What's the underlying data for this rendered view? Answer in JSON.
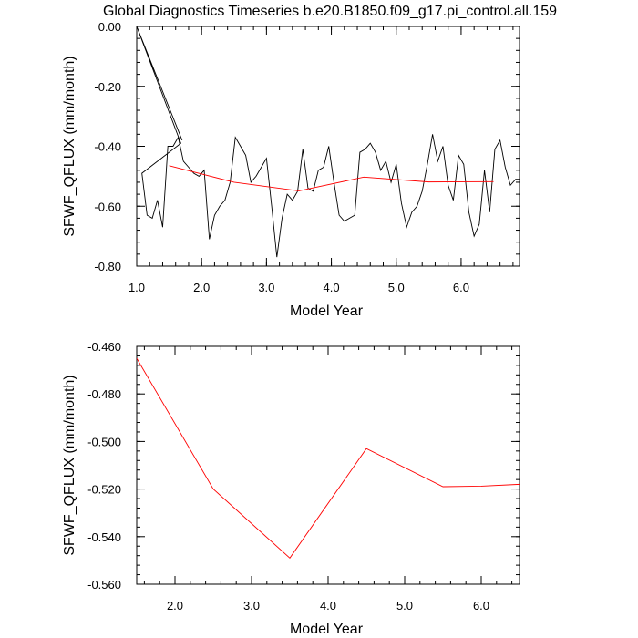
{
  "title": "Global Diagnostics Timeseries b.e20.B1850.f09_g17.pi_control.all.159",
  "colors": {
    "monthly": "#000000",
    "annual": "#ff0000",
    "axis": "#000000"
  },
  "chart_data": [
    {
      "type": "line",
      "xlabel": "Model Year",
      "ylabel": "SFWF_QFLUX (mm/month)",
      "xlim": [
        1.0,
        6.9
      ],
      "ylim": [
        -0.8,
        0.0
      ],
      "x_ticks": [
        1.0,
        2.0,
        3.0,
        4.0,
        5.0,
        6.0
      ],
      "x_tick_labels": [
        "1.0",
        "2.0",
        "3.0",
        "4.0",
        "5.0",
        "6.0"
      ],
      "y_ticks": [
        0.0,
        -0.2,
        -0.4,
        -0.6,
        -0.8
      ],
      "y_tick_labels": [
        "0.00",
        "-0.20",
        "-0.40",
        "-0.60",
        "-0.80"
      ],
      "series": [
        {
          "color": "#000000",
          "x": [
            1.0,
            1.7,
            1.0,
            1.68,
            1.08,
            1.16,
            1.24,
            1.32,
            1.4,
            1.48,
            1.56,
            1.64,
            1.72,
            1.8,
            1.88,
            1.96,
            2.04,
            2.12,
            2.2,
            2.28,
            2.36,
            2.44,
            2.52,
            2.6,
            2.68,
            2.76,
            2.84,
            2.92,
            3.0,
            3.08,
            3.16,
            3.24,
            3.32,
            3.4,
            3.48,
            3.56,
            3.64,
            3.72,
            3.8,
            3.88,
            3.96,
            4.04,
            4.12,
            4.2,
            4.28,
            4.36,
            4.44,
            4.52,
            4.6,
            4.68,
            4.76,
            4.84,
            4.92,
            5.0,
            5.08,
            5.16,
            5.24,
            5.32,
            5.4,
            5.48,
            5.56,
            5.64,
            5.72,
            5.8,
            5.88,
            5.96,
            6.04,
            6.12,
            6.2,
            6.28,
            6.36,
            6.44,
            6.52,
            6.6,
            6.68,
            6.76,
            6.84,
            6.9
          ],
          "y": [
            0.0,
            -0.38,
            0.0,
            -0.39,
            -0.49,
            -0.63,
            -0.64,
            -0.58,
            -0.67,
            -0.4,
            -0.4,
            -0.37,
            -0.45,
            -0.47,
            -0.49,
            -0.5,
            -0.48,
            -0.71,
            -0.63,
            -0.6,
            -0.58,
            -0.52,
            -0.37,
            -0.4,
            -0.43,
            -0.52,
            -0.5,
            -0.47,
            -0.44,
            -0.6,
            -0.77,
            -0.64,
            -0.56,
            -0.58,
            -0.55,
            -0.41,
            -0.54,
            -0.55,
            -0.48,
            -0.47,
            -0.4,
            -0.52,
            -0.63,
            -0.65,
            -0.64,
            -0.63,
            -0.42,
            -0.41,
            -0.39,
            -0.42,
            -0.48,
            -0.45,
            -0.52,
            -0.46,
            -0.59,
            -0.67,
            -0.62,
            -0.6,
            -0.55,
            -0.46,
            -0.36,
            -0.45,
            -0.4,
            -0.53,
            -0.58,
            -0.43,
            -0.46,
            -0.62,
            -0.7,
            -0.66,
            -0.48,
            -0.62,
            -0.41,
            -0.38,
            -0.47,
            -0.53,
            -0.51,
            -0.51
          ]
        },
        {
          "color": "#ff0000",
          "x": [
            1.5,
            2.5,
            3.5,
            4.5,
            5.5,
            6.5
          ],
          "y": [
            -0.465,
            -0.52,
            -0.549,
            -0.503,
            -0.519,
            -0.518
          ]
        }
      ]
    },
    {
      "type": "line",
      "xlabel": "Model Year",
      "ylabel": "SFWF_QFLUX (mm/month)",
      "xlim": [
        1.5,
        6.5
      ],
      "ylim": [
        -0.56,
        -0.46
      ],
      "x_ticks": [
        2.0,
        3.0,
        4.0,
        5.0,
        6.0
      ],
      "x_tick_labels": [
        "2.0",
        "3.0",
        "4.0",
        "5.0",
        "6.0"
      ],
      "y_ticks": [
        -0.46,
        -0.48,
        -0.5,
        -0.52,
        -0.54,
        -0.56
      ],
      "y_tick_labels": [
        "-0.460",
        "-0.480",
        "-0.500",
        "-0.520",
        "-0.540",
        "-0.560"
      ],
      "series": [
        {
          "color": "#ff0000",
          "x": [
            1.5,
            2.5,
            3.5,
            4.5,
            5.5,
            6.0,
            6.5
          ],
          "y": [
            -0.465,
            -0.52,
            -0.549,
            -0.503,
            -0.519,
            -0.5188,
            -0.518
          ]
        }
      ]
    }
  ]
}
